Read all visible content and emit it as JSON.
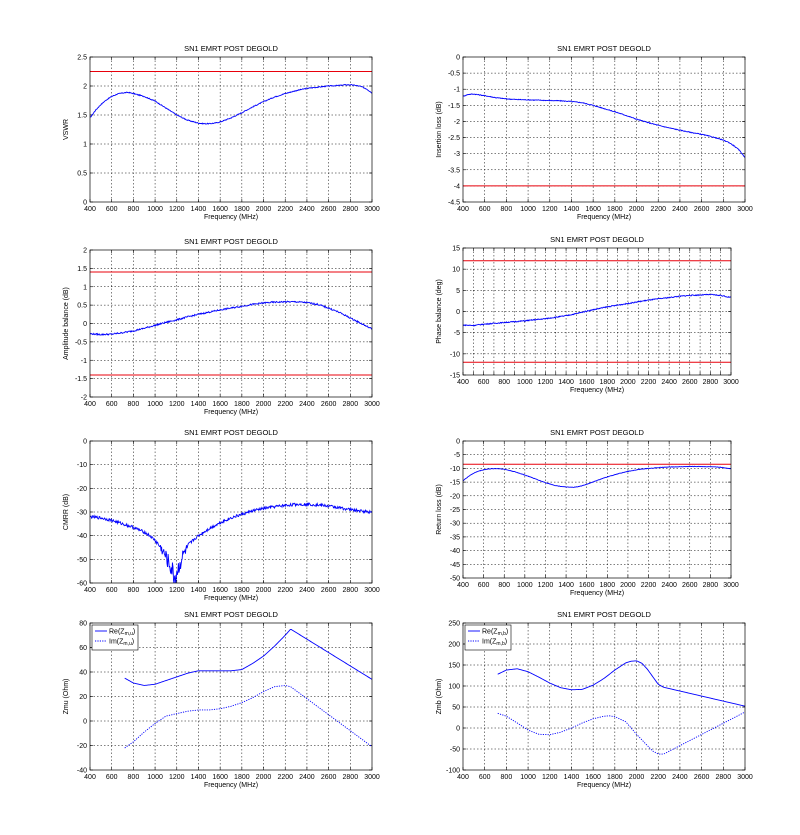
{
  "colors": {
    "trace": "#0000ff",
    "limit": "#e8000b",
    "grid": "#000000"
  },
  "chart_data": [
    {
      "type": "line",
      "title": "SN1 EMRT POST DEGOLD",
      "xlabel": "Frequency (MHz)",
      "ylabel": "VSWR",
      "xlim": [
        400,
        3000
      ],
      "ylim": [
        0,
        2.5
      ],
      "xticks": [
        400,
        600,
        800,
        1000,
        1200,
        1400,
        1600,
        1800,
        2000,
        2200,
        2400,
        2600,
        2800,
        3000
      ],
      "yticks": [
        0,
        0.5,
        1,
        1.5,
        2,
        2.5
      ],
      "grid": true,
      "series": [
        {
          "x": [
            400,
            450,
            500,
            550,
            600,
            650,
            700,
            750,
            800,
            900,
            1000,
            1100,
            1200,
            1300,
            1400,
            1450,
            1500,
            1550,
            1600,
            1700,
            1800,
            1900,
            2000,
            2100,
            2200,
            2300,
            2400,
            2500,
            2600,
            2700,
            2750,
            2800,
            2850,
            2900,
            2950,
            3000
          ],
          "y": [
            1.45,
            1.58,
            1.68,
            1.76,
            1.82,
            1.86,
            1.88,
            1.89,
            1.87,
            1.82,
            1.74,
            1.62,
            1.5,
            1.41,
            1.36,
            1.35,
            1.35,
            1.36,
            1.38,
            1.45,
            1.54,
            1.64,
            1.73,
            1.81,
            1.87,
            1.92,
            1.96,
            1.98,
            2.0,
            2.01,
            2.02,
            2.02,
            2.01,
            1.99,
            1.95,
            1.88
          ],
          "style": "solid",
          "noise": 0.008
        },
        {
          "x": [
            400,
            3000
          ],
          "y": [
            2.25,
            2.25
          ],
          "style": "limit"
        }
      ]
    },
    {
      "type": "line",
      "title": "SN1 EMRT POST DEGOLD",
      "xlabel": "Frequency (MHz)",
      "ylabel": "Insertion loss (dB)",
      "xlim": [
        400,
        3000
      ],
      "ylim": [
        -4.5,
        0
      ],
      "xticks": [
        400,
        600,
        800,
        1000,
        1200,
        1400,
        1600,
        1800,
        2000,
        2200,
        2400,
        2600,
        2800,
        3000
      ],
      "yticks": [
        -4.5,
        -4,
        -3.5,
        -3,
        -2.5,
        -2,
        -1.5,
        -1,
        -0.5,
        0
      ],
      "grid": true,
      "series": [
        {
          "x": [
            400,
            450,
            500,
            600,
            700,
            800,
            900,
            1000,
            1100,
            1200,
            1300,
            1400,
            1500,
            1600,
            1700,
            1800,
            1900,
            2000,
            2100,
            2200,
            2300,
            2400,
            2500,
            2600,
            2700,
            2800,
            2850,
            2900,
            2950,
            3000
          ],
          "y": [
            -1.22,
            -1.16,
            -1.15,
            -1.2,
            -1.26,
            -1.3,
            -1.32,
            -1.33,
            -1.34,
            -1.35,
            -1.36,
            -1.38,
            -1.42,
            -1.5,
            -1.6,
            -1.7,
            -1.81,
            -1.93,
            -2.03,
            -2.12,
            -2.2,
            -2.27,
            -2.34,
            -2.4,
            -2.48,
            -2.58,
            -2.65,
            -2.76,
            -2.9,
            -3.12
          ],
          "style": "solid",
          "noise": 0.012
        },
        {
          "x": [
            400,
            3000
          ],
          "y": [
            -4,
            -4
          ],
          "style": "limit"
        }
      ]
    },
    {
      "type": "line",
      "title": "SN1 EMRT POST DEGOLD",
      "xlabel": "Frequency (MHz)",
      "ylabel": "Amplitude balance (dB)",
      "xlim": [
        400,
        3000
      ],
      "ylim": [
        -2,
        2
      ],
      "xticks": [
        400,
        600,
        800,
        1000,
        1200,
        1400,
        1600,
        1800,
        2000,
        2200,
        2400,
        2600,
        2800,
        3000
      ],
      "yticks": [
        -2,
        -1.5,
        -1,
        -0.5,
        0,
        0.5,
        1,
        1.5,
        2
      ],
      "grid": true,
      "series": [
        {
          "x": [
            400,
            500,
            600,
            700,
            800,
            900,
            1000,
            1100,
            1200,
            1300,
            1400,
            1500,
            1600,
            1700,
            1800,
            1900,
            2000,
            2100,
            2200,
            2300,
            2400,
            2500,
            2600,
            2700,
            2800,
            2900,
            3000
          ],
          "y": [
            -0.28,
            -0.3,
            -0.29,
            -0.25,
            -0.2,
            -0.13,
            -0.05,
            0.03,
            0.1,
            0.18,
            0.25,
            0.31,
            0.37,
            0.42,
            0.47,
            0.52,
            0.56,
            0.58,
            0.59,
            0.59,
            0.57,
            0.52,
            0.42,
            0.3,
            0.15,
            0.0,
            -0.15
          ],
          "style": "solid",
          "noise": 0.02
        },
        {
          "x": [
            400,
            3000
          ],
          "y": [
            1.4,
            1.4
          ],
          "style": "limit"
        },
        {
          "x": [
            400,
            3000
          ],
          "y": [
            -1.4,
            -1.4
          ],
          "style": "limit"
        }
      ]
    },
    {
      "type": "line",
      "title": "SN1 EMRT POST DEGOLD",
      "xlabel": "Frequency (MHz)",
      "ylabel": "Phase balance (deg)",
      "xlim": [
        400,
        3000
      ],
      "ylim": [
        -15,
        15
      ],
      "xticks": [
        400,
        500,
        600,
        700,
        800,
        900,
        1000,
        1100,
        1200,
        1300,
        1400,
        1500,
        1600,
        1700,
        1800,
        1900,
        2000,
        2100,
        2200,
        2300,
        2400,
        2500,
        2600,
        2700,
        2800,
        2900,
        3000
      ],
      "xticklabels": [
        400,
        600,
        800,
        1000,
        1200,
        1400,
        1600,
        1800,
        2000,
        2200,
        2400,
        2600,
        2800,
        3000
      ],
      "yticks": [
        -15,
        -10,
        -5,
        0,
        5,
        10,
        15
      ],
      "grid": true,
      "series": [
        {
          "x": [
            400,
            500,
            600,
            800,
            1000,
            1200,
            1400,
            1500,
            1600,
            1700,
            1800,
            1900,
            2000,
            2100,
            2200,
            2300,
            2400,
            2500,
            2600,
            2700,
            2800,
            2900,
            3000
          ],
          "y": [
            -3.2,
            -3.3,
            -3.0,
            -2.6,
            -2.2,
            -1.7,
            -1.0,
            -0.5,
            0.1,
            0.6,
            1.1,
            1.5,
            1.9,
            2.3,
            2.7,
            3.0,
            3.3,
            3.6,
            3.8,
            3.9,
            4.0,
            3.8,
            3.3
          ],
          "style": "solid",
          "noise": 0.12
        },
        {
          "x": [
            400,
            3000
          ],
          "y": [
            12,
            12
          ],
          "style": "limit"
        },
        {
          "x": [
            400,
            3000
          ],
          "y": [
            -12,
            -12
          ],
          "style": "limit"
        }
      ]
    },
    {
      "type": "line",
      "title": "SN1 EMRT POST DEGOLD",
      "xlabel": "Frequency (MHz)",
      "ylabel": "CMRR (dB)",
      "xlim": [
        400,
        3000
      ],
      "ylim": [
        -60,
        0
      ],
      "xticks": [
        400,
        600,
        800,
        1000,
        1200,
        1400,
        1600,
        1800,
        2000,
        2200,
        2400,
        2600,
        2800,
        3000
      ],
      "yticks": [
        -60,
        -50,
        -40,
        -30,
        -20,
        -10,
        0
      ],
      "grid": true,
      "series": [
        {
          "x": [
            400,
            500,
            600,
            700,
            800,
            900,
            950,
            1000,
            1050,
            1100,
            1150,
            1180,
            1200,
            1230,
            1260,
            1300,
            1350,
            1400,
            1500,
            1600,
            1700,
            1800,
            1900,
            2000,
            2100,
            2200,
            2300,
            2400,
            2500,
            2600,
            2700,
            2800,
            2900,
            3000
          ],
          "y": [
            -32,
            -32.5,
            -33.5,
            -35,
            -36.5,
            -38.5,
            -40,
            -42,
            -45,
            -49,
            -54,
            -58,
            -56,
            -52,
            -48,
            -45,
            -42,
            -40,
            -37,
            -34.5,
            -32.5,
            -31,
            -29.5,
            -28.5,
            -27.8,
            -27.2,
            -26.8,
            -26.7,
            -27,
            -27.5,
            -28.2,
            -29,
            -29.6,
            -30
          ],
          "style": "solid",
          "noise": 0.6,
          "noise_band": [
            1000,
            1350
          ],
          "noise_band_amp": 4
        }
      ]
    },
    {
      "type": "line",
      "title": "SN1 EMRT POST DEGOLD",
      "xlabel": "Frequency (MHz)",
      "ylabel": "Return loss (dB)",
      "xlim": [
        400,
        3000
      ],
      "ylim": [
        -50,
        0
      ],
      "xticks": [
        400,
        600,
        800,
        1000,
        1200,
        1400,
        1600,
        1800,
        2000,
        2200,
        2400,
        2600,
        2800,
        3000
      ],
      "yticks": [
        -50,
        -45,
        -40,
        -35,
        -30,
        -25,
        -20,
        -15,
        -10,
        -5,
        0
      ],
      "grid": true,
      "series": [
        {
          "x": [
            400,
            450,
            500,
            550,
            600,
            650,
            700,
            750,
            800,
            900,
            1000,
            1100,
            1200,
            1300,
            1400,
            1450,
            1500,
            1550,
            1600,
            1700,
            1800,
            1900,
            2000,
            2100,
            2200,
            2300,
            2400,
            2500,
            2600,
            2700,
            2800,
            2900,
            3000
          ],
          "y": [
            -14.5,
            -13,
            -11.8,
            -11,
            -10.5,
            -10.2,
            -10.1,
            -10.1,
            -10.3,
            -11.2,
            -12.4,
            -13.8,
            -15.2,
            -16.3,
            -16.8,
            -16.9,
            -16.8,
            -16.4,
            -15.8,
            -14.4,
            -13.1,
            -12.0,
            -11.1,
            -10.4,
            -10.0,
            -9.7,
            -9.5,
            -9.4,
            -9.3,
            -9.3,
            -9.4,
            -9.6,
            -10.1
          ],
          "style": "solid",
          "noise": 0.08
        },
        {
          "x": [
            400,
            3000
          ],
          "y": [
            -8.5,
            -8.5
          ],
          "style": "limit"
        }
      ]
    },
    {
      "type": "line",
      "title": "SN1 EMRT POST DEGOLD",
      "xlabel": "Frequency (MHz)",
      "ylabel": "Zmu (Ohm)",
      "xlim": [
        400,
        3000
      ],
      "ylim": [
        -40,
        80
      ],
      "xticks": [
        400,
        600,
        800,
        1000,
        1200,
        1400,
        1600,
        1800,
        2000,
        2200,
        2400,
        2600,
        2800,
        3000
      ],
      "yticks": [
        -40,
        -20,
        0,
        20,
        40,
        60,
        80
      ],
      "grid": true,
      "legend": {
        "position": "top-left",
        "entries": [
          "Re(Z",
          "Im(Z"
        ],
        "subscript": "m,u"
      },
      "series": [
        {
          "name": "Re",
          "x": [
            720,
            800,
            900,
            1000,
            1100,
            1200,
            1300,
            1400,
            1500,
            1600,
            1700,
            1800,
            1900,
            2000,
            2100,
            2200,
            2250,
            3000
          ],
          "y": [
            35,
            31,
            29,
            30,
            33,
            36,
            39,
            41,
            41,
            41,
            41,
            42,
            47,
            53,
            61,
            70,
            75,
            34
          ],
          "style": "solid"
        },
        {
          "name": "Im",
          "x": [
            720,
            800,
            900,
            1000,
            1100,
            1200,
            1300,
            1400,
            1500,
            1600,
            1700,
            1800,
            1900,
            2000,
            2100,
            2200,
            2250,
            3000
          ],
          "y": [
            -22,
            -17,
            -9,
            -2,
            4,
            6,
            8,
            9,
            9,
            10,
            12,
            15,
            19,
            24,
            28,
            29,
            28,
            -21
          ],
          "style": "dashed"
        }
      ]
    },
    {
      "type": "line",
      "title": "SN1 EMRT POST DEGOLD",
      "xlabel": "Frequency (MHz)",
      "ylabel": "Zmb (Ohm)",
      "xlim": [
        400,
        3000
      ],
      "ylim": [
        -100,
        250
      ],
      "xticks": [
        400,
        600,
        800,
        1000,
        1200,
        1400,
        1600,
        1800,
        2000,
        2200,
        2400,
        2600,
        2800,
        3000
      ],
      "yticks": [
        -100,
        -50,
        0,
        50,
        100,
        150,
        200,
        250
      ],
      "grid": true,
      "legend": {
        "position": "top-left",
        "entries": [
          "Re(Z",
          "Im(Z"
        ],
        "subscript": "m,b"
      },
      "series": [
        {
          "name": "Re",
          "x": [
            720,
            800,
            900,
            1000,
            1100,
            1200,
            1300,
            1400,
            1500,
            1600,
            1700,
            1800,
            1900,
            1950,
            2000,
            2050,
            2100,
            2150,
            2200,
            2250,
            3000
          ],
          "y": [
            128,
            138,
            141,
            134,
            121,
            107,
            96,
            91,
            92,
            102,
            118,
            138,
            155,
            159,
            160,
            154,
            140,
            122,
            104,
            97,
            52
          ],
          "style": "solid"
        },
        {
          "name": "Im",
          "x": [
            720,
            800,
            900,
            1000,
            1100,
            1200,
            1300,
            1400,
            1500,
            1600,
            1700,
            1750,
            1800,
            1900,
            2000,
            2100,
            2150,
            2200,
            2250,
            3000
          ],
          "y": [
            35,
            28,
            12,
            -5,
            -15,
            -16,
            -10,
            0,
            12,
            22,
            28,
            29,
            27,
            15,
            -15,
            -42,
            -55,
            -62,
            -62,
            38
          ],
          "style": "dashed"
        }
      ]
    }
  ]
}
